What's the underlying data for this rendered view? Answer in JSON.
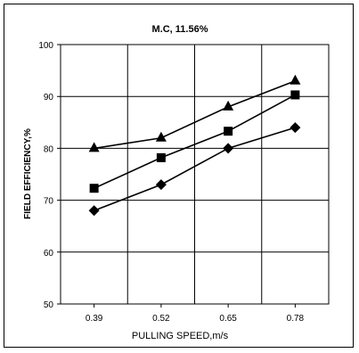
{
  "chart_data": {
    "type": "line",
    "title": "M.C, 11.56%",
    "xlabel": "PULLING SPEED,m/s",
    "ylabel": "FIELD EFFICIENCY,%",
    "categories": [
      "0.39",
      "0.52",
      "0.65",
      "0.78"
    ],
    "ylim": [
      50,
      100
    ],
    "yticks": [
      50,
      60,
      70,
      80,
      90,
      100
    ],
    "grid": true,
    "legend": "none",
    "colors": {
      "line": "#000000",
      "grid": "#000000",
      "background": "#ffffff"
    },
    "series": [
      {
        "marker": "triangle",
        "values": [
          80,
          82,
          88,
          93
        ]
      },
      {
        "marker": "square",
        "values": [
          72.3,
          78.2,
          83.3,
          90.3
        ]
      },
      {
        "marker": "diamond",
        "values": [
          68,
          73,
          80,
          84
        ]
      }
    ]
  }
}
